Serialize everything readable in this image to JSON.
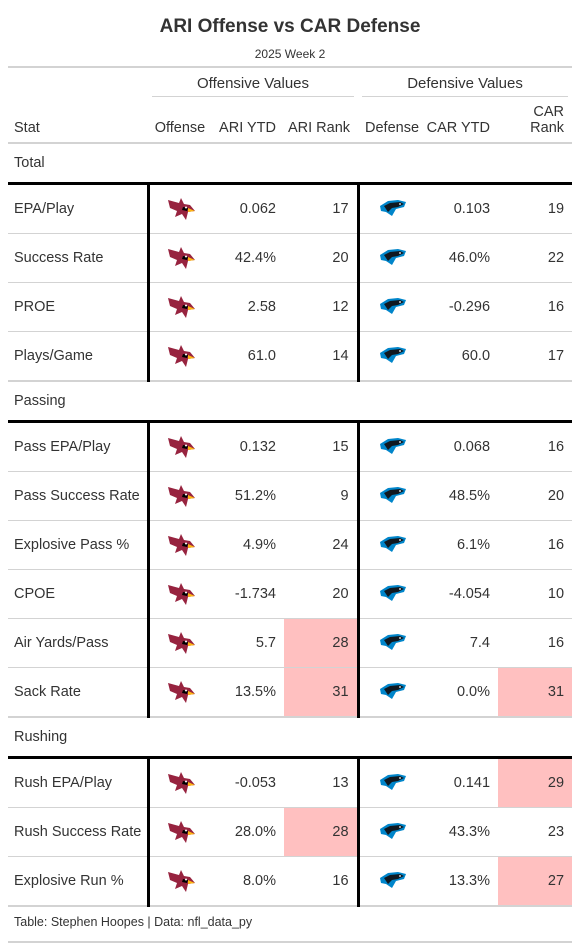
{
  "title": "ARI Offense vs CAR Defense",
  "subtitle": "2025 Week 2",
  "spanners": {
    "offense": "Offensive Values",
    "defense": "Defensive Values"
  },
  "columns": [
    "Stat",
    "Offense",
    "ARI YTD",
    "ARI Rank",
    "Defense",
    "CAR YTD",
    "CAR Rank"
  ],
  "icons": {
    "offense": "cardinals-logo-icon",
    "defense": "panthers-logo-icon"
  },
  "colors": {
    "highlight": "#ffc0c0",
    "cardinals_red": "#97233f",
    "panthers_blue": "#0085ca"
  },
  "chart_data": {
    "type": "table",
    "groups": [
      {
        "name": "Total",
        "rows": [
          {
            "stat": "EPA/Play",
            "ari_ytd": "0.062",
            "ari_rank": "17",
            "car_ytd": "0.103",
            "car_rank": "19",
            "hl_ari": false,
            "hl_car": false
          },
          {
            "stat": "Success Rate",
            "ari_ytd": "42.4%",
            "ari_rank": "20",
            "car_ytd": "46.0%",
            "car_rank": "22",
            "hl_ari": false,
            "hl_car": false
          },
          {
            "stat": "PROE",
            "ari_ytd": "2.58",
            "ari_rank": "12",
            "car_ytd": "-0.296",
            "car_rank": "16",
            "hl_ari": false,
            "hl_car": false
          },
          {
            "stat": "Plays/Game",
            "ari_ytd": "61.0",
            "ari_rank": "14",
            "car_ytd": "60.0",
            "car_rank": "17",
            "hl_ari": false,
            "hl_car": false
          }
        ]
      },
      {
        "name": "Passing",
        "rows": [
          {
            "stat": "Pass EPA/Play",
            "ari_ytd": "0.132",
            "ari_rank": "15",
            "car_ytd": "0.068",
            "car_rank": "16",
            "hl_ari": false,
            "hl_car": false
          },
          {
            "stat": "Pass Success Rate",
            "ari_ytd": "51.2%",
            "ari_rank": "9",
            "car_ytd": "48.5%",
            "car_rank": "20",
            "hl_ari": false,
            "hl_car": false
          },
          {
            "stat": "Explosive Pass %",
            "ari_ytd": "4.9%",
            "ari_rank": "24",
            "car_ytd": "6.1%",
            "car_rank": "16",
            "hl_ari": false,
            "hl_car": false
          },
          {
            "stat": "CPOE",
            "ari_ytd": "-1.734",
            "ari_rank": "20",
            "car_ytd": "-4.054",
            "car_rank": "10",
            "hl_ari": false,
            "hl_car": false
          },
          {
            "stat": "Air Yards/Pass",
            "ari_ytd": "5.7",
            "ari_rank": "28",
            "car_ytd": "7.4",
            "car_rank": "16",
            "hl_ari": true,
            "hl_car": false
          },
          {
            "stat": "Sack Rate",
            "ari_ytd": "13.5%",
            "ari_rank": "31",
            "car_ytd": "0.0%",
            "car_rank": "31",
            "hl_ari": true,
            "hl_car": true
          }
        ]
      },
      {
        "name": "Rushing",
        "rows": [
          {
            "stat": "Rush EPA/Play",
            "ari_ytd": "-0.053",
            "ari_rank": "13",
            "car_ytd": "0.141",
            "car_rank": "29",
            "hl_ari": false,
            "hl_car": true
          },
          {
            "stat": "Rush Success Rate",
            "ari_ytd": "28.0%",
            "ari_rank": "28",
            "car_ytd": "43.3%",
            "car_rank": "23",
            "hl_ari": true,
            "hl_car": false
          },
          {
            "stat": "Explosive Run %",
            "ari_ytd": "8.0%",
            "ari_rank": "16",
            "car_ytd": "13.3%",
            "car_rank": "27",
            "hl_ari": false,
            "hl_car": true
          }
        ]
      }
    ]
  },
  "footer": "Table: Stephen Hoopes | Data: nfl_data_py"
}
